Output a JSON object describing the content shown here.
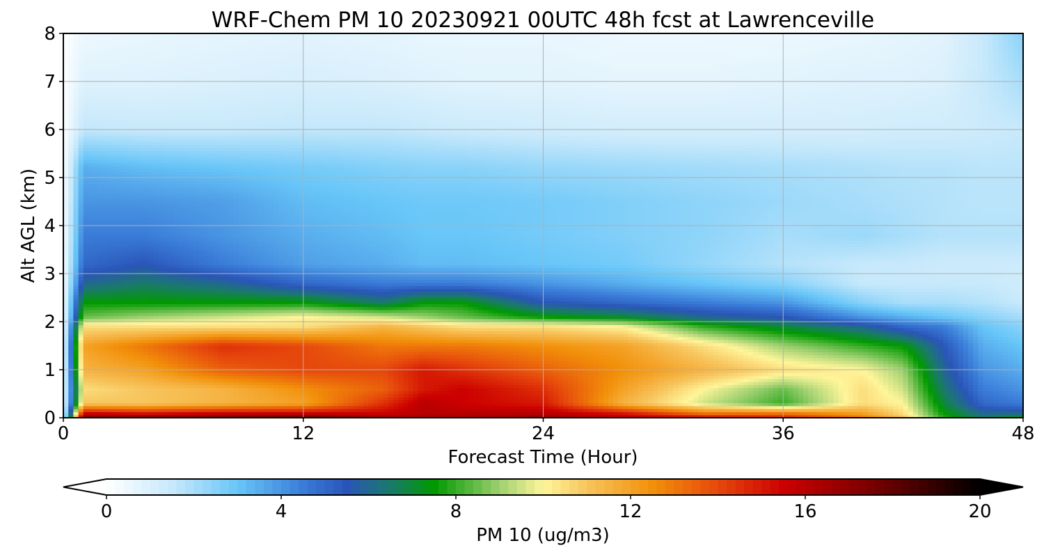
{
  "chart_data": {
    "type": "heatmap",
    "title": "WRF-Chem PM 10  20230921 00UTC 48h fcst at Lawrenceville",
    "xlabel": "Forecast Time (Hour)",
    "ylabel": "Alt AGL (km)",
    "xlim": [
      0,
      48
    ],
    "ylim": [
      0,
      8
    ],
    "x_ticks": [
      0,
      12,
      24,
      36,
      48
    ],
    "y_ticks": [
      0,
      1,
      2,
      3,
      4,
      5,
      6,
      7,
      8
    ],
    "grid": true,
    "colorbar": {
      "label": "PM 10  (ug/m3)",
      "range": [
        0,
        20
      ],
      "ticks": [
        0,
        4,
        8,
        12,
        16,
        20
      ],
      "extend": "both",
      "stops": [
        {
          "value": 0,
          "color": "#ffffff"
        },
        {
          "value": 1.5,
          "color": "#c8e9fb"
        },
        {
          "value": 3,
          "color": "#68c6f8"
        },
        {
          "value": 4.5,
          "color": "#3a7cd8"
        },
        {
          "value": 5.5,
          "color": "#2a55b8"
        },
        {
          "value": 6.5,
          "color": "#1a7a6a"
        },
        {
          "value": 7.5,
          "color": "#009900"
        },
        {
          "value": 9,
          "color": "#9ed070"
        },
        {
          "value": 10,
          "color": "#fff59a"
        },
        {
          "value": 11,
          "color": "#f7c55e"
        },
        {
          "value": 12.5,
          "color": "#f2900a"
        },
        {
          "value": 14,
          "color": "#e6480c"
        },
        {
          "value": 15.5,
          "color": "#cc0000"
        },
        {
          "value": 17.5,
          "color": "#7a0000"
        },
        {
          "value": 20,
          "color": "#000000"
        }
      ]
    },
    "field": {
      "x": [
        0,
        1,
        4,
        8,
        12,
        16,
        18,
        20,
        24,
        28,
        32,
        36,
        40,
        42,
        44,
        46,
        48
      ],
      "y": [
        0,
        0.1,
        0.3,
        0.6,
        1.0,
        1.5,
        1.9,
        2.1,
        2.4,
        2.8,
        3.2,
        3.8,
        4.5,
        5.2,
        6.0,
        7.0,
        8.0
      ],
      "z": [
        [
          0.5,
          18.0,
          17.5,
          18.0,
          18.5,
          17.0,
          16.5,
          16.5,
          17.0,
          16.0,
          15.5,
          15.0,
          13.0,
          11.0,
          8.0,
          6.5,
          7.5
        ],
        [
          0.5,
          15.5,
          15.0,
          15.5,
          15.5,
          15.5,
          16.0,
          16.0,
          16.0,
          15.0,
          13.0,
          13.0,
          12.0,
          10.5,
          7.5,
          6.0,
          6.0
        ],
        [
          0.4,
          11.0,
          11.0,
          11.5,
          12.0,
          14.5,
          16.0,
          15.5,
          15.0,
          11.5,
          9.5,
          8.0,
          10.5,
          10.0,
          7.0,
          5.0,
          4.5
        ],
        [
          0.4,
          10.5,
          11.0,
          11.5,
          12.5,
          13.5,
          15.0,
          15.5,
          14.5,
          12.0,
          10.0,
          8.5,
          10.5,
          9.5,
          6.5,
          4.5,
          4.0
        ],
        [
          0.3,
          11.5,
          12.0,
          13.5,
          14.0,
          14.0,
          15.0,
          14.5,
          13.5,
          12.5,
          11.5,
          10.5,
          10.0,
          9.0,
          6.0,
          4.0,
          3.5
        ],
        [
          0.3,
          12.0,
          13.0,
          14.5,
          14.0,
          13.0,
          13.0,
          13.0,
          12.5,
          12.0,
          10.5,
          9.0,
          8.0,
          7.5,
          5.5,
          3.5,
          3.0
        ],
        [
          0.2,
          10.5,
          10.5,
          10.5,
          10.5,
          11.5,
          11.0,
          10.5,
          10.5,
          10.0,
          8.0,
          7.0,
          6.0,
          5.0,
          4.5,
          3.0,
          2.5
        ],
        [
          0.2,
          8.5,
          9.0,
          9.5,
          10.0,
          9.5,
          9.0,
          8.5,
          7.5,
          7.0,
          6.0,
          5.5,
          4.0,
          3.5,
          3.0,
          2.5,
          2.0
        ],
        [
          0.2,
          7.5,
          7.5,
          7.5,
          7.5,
          6.5,
          7.5,
          7.5,
          5.5,
          5.0,
          4.5,
          4.0,
          2.5,
          2.0,
          2.0,
          1.8,
          1.5
        ],
        [
          0.1,
          6.0,
          6.5,
          6.0,
          5.0,
          4.5,
          4.5,
          4.5,
          4.0,
          3.5,
          3.0,
          2.5,
          1.5,
          1.5,
          1.5,
          1.5,
          1.3
        ],
        [
          0.1,
          5.0,
          5.5,
          4.5,
          3.8,
          3.5,
          3.2,
          3.2,
          3.0,
          2.8,
          2.3,
          1.8,
          1.5,
          1.5,
          1.4,
          1.4,
          1.4
        ],
        [
          0.1,
          4.5,
          4.5,
          4.0,
          3.5,
          3.2,
          3.0,
          3.0,
          2.8,
          2.6,
          2.4,
          2.0,
          2.2,
          2.0,
          1.8,
          1.8,
          1.8
        ],
        [
          0.1,
          4.0,
          4.0,
          3.8,
          3.2,
          3.0,
          2.9,
          2.9,
          2.8,
          2.6,
          2.4,
          2.2,
          2.0,
          1.9,
          1.8,
          1.7,
          1.7
        ],
        [
          0.1,
          3.5,
          3.2,
          3.0,
          2.8,
          2.6,
          2.5,
          2.5,
          2.3,
          2.2,
          2.1,
          2.0,
          1.9,
          1.8,
          1.8,
          1.7,
          1.7
        ],
        [
          0.05,
          1.6,
          1.5,
          1.5,
          1.6,
          1.6,
          1.5,
          1.4,
          1.3,
          1.2,
          1.2,
          1.2,
          1.2,
          1.3,
          1.3,
          1.4,
          1.5
        ],
        [
          0.05,
          0.9,
          0.9,
          1.0,
          1.1,
          1.0,
          0.9,
          0.8,
          0.8,
          0.7,
          0.7,
          0.8,
          0.9,
          0.9,
          1.0,
          1.5,
          2.0
        ],
        [
          0.05,
          0.5,
          0.6,
          0.7,
          0.8,
          0.7,
          0.6,
          0.6,
          0.6,
          0.5,
          0.5,
          0.5,
          0.6,
          0.7,
          0.8,
          1.5,
          2.5
        ]
      ]
    }
  }
}
